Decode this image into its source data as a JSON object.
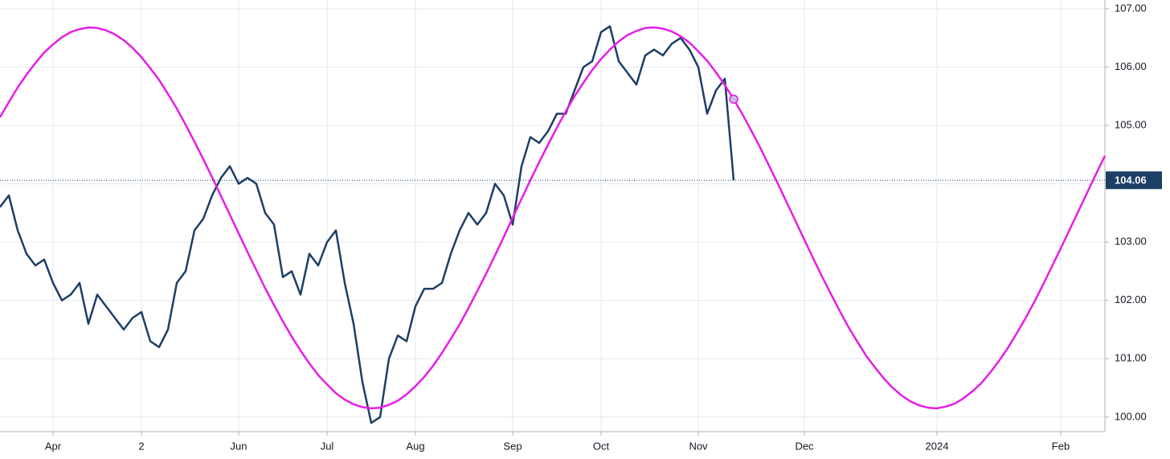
{
  "chart_data": {
    "type": "line",
    "categories": [
      null,
      null,
      null,
      null,
      null,
      null,
      "Apr",
      null,
      null,
      null,
      null,
      null,
      null,
      null,
      null,
      null,
      "2",
      null,
      null,
      null,
      null,
      null,
      null,
      null,
      null,
      null,
      null,
      "Jun",
      null,
      null,
      null,
      null,
      null,
      null,
      null,
      null,
      null,
      "Jul",
      null,
      null,
      null,
      null,
      null,
      null,
      null,
      null,
      null,
      "Aug",
      null,
      null,
      null,
      null,
      null,
      null,
      null,
      null,
      null,
      null,
      "Sep",
      null,
      null,
      null,
      null,
      null,
      null,
      null,
      null,
      null,
      "Oct",
      null,
      null,
      null,
      null,
      null,
      null,
      null,
      null,
      null,
      null,
      "Nov",
      null,
      null,
      null,
      null,
      null,
      null,
      null,
      null,
      null,
      null,
      null,
      "Dec",
      null,
      null,
      null,
      null,
      null,
      null,
      null,
      null,
      null,
      null,
      null,
      null,
      null,
      null,
      "2024",
      null,
      null,
      null,
      null,
      null,
      null,
      null,
      null,
      null,
      null,
      null,
      null,
      null,
      "Feb",
      null,
      null,
      null,
      null,
      null
    ],
    "series": [
      {
        "color": "#1d3f66",
        "values": [
          103.6,
          103.8,
          103.2,
          102.8,
          102.6,
          102.7,
          102.3,
          102.0,
          102.1,
          102.3,
          101.6,
          102.1,
          101.9,
          101.7,
          101.5,
          101.7,
          101.8,
          101.3,
          101.2,
          101.5,
          102.3,
          102.5,
          103.2,
          103.4,
          103.8,
          104.1,
          104.3,
          104.0,
          104.1,
          104.0,
          103.5,
          103.3,
          102.4,
          102.5,
          102.1,
          102.8,
          102.6,
          103.0,
          103.2,
          102.3,
          101.6,
          100.6,
          99.9,
          100.0,
          101.0,
          101.4,
          101.3,
          101.9,
          102.2,
          102.2,
          102.3,
          102.8,
          103.2,
          103.5,
          103.3,
          103.5,
          104.0,
          103.8,
          103.3,
          104.3,
          104.8,
          104.7,
          104.9,
          105.2,
          105.2,
          105.6,
          106.0,
          106.1,
          106.6,
          106.7,
          106.1,
          105.9,
          105.7,
          106.2,
          106.3,
          106.2,
          106.4,
          106.5,
          106.3,
          106.0,
          105.2,
          105.6,
          105.8,
          104.06,
          null,
          null,
          null,
          null,
          null,
          null,
          null,
          null,
          null,
          null,
          null,
          null,
          null,
          null,
          null,
          null,
          null,
          null,
          null,
          null,
          null,
          null,
          null,
          null,
          null,
          null,
          null,
          null,
          null,
          null,
          null,
          null,
          null,
          null,
          null,
          null,
          null,
          null,
          null,
          null,
          null,
          null
        ]
      },
      {
        "color": "#e61ee6",
        "values": [
          105.14,
          105.4,
          105.65,
          105.87,
          106.07,
          106.25,
          106.39,
          106.51,
          106.6,
          106.65,
          106.68,
          106.67,
          106.63,
          106.56,
          106.46,
          106.33,
          106.17,
          105.98,
          105.78,
          105.54,
          105.29,
          105.01,
          104.72,
          104.42,
          104.11,
          103.79,
          103.47,
          103.15,
          102.83,
          102.52,
          102.21,
          101.92,
          101.64,
          101.38,
          101.14,
          100.92,
          100.72,
          100.56,
          100.41,
          100.3,
          100.22,
          100.17,
          100.15,
          100.16,
          100.21,
          100.28,
          100.39,
          100.53,
          100.69,
          100.88,
          101.1,
          101.34,
          101.59,
          101.87,
          102.16,
          102.46,
          102.77,
          103.09,
          103.42,
          103.74,
          104.06,
          104.37,
          104.67,
          104.96,
          105.24,
          105.5,
          105.73,
          105.95,
          106.14,
          106.3,
          106.44,
          106.55,
          106.62,
          106.67,
          106.68,
          106.66,
          106.61,
          106.53,
          106.42,
          106.27,
          106.11,
          105.91,
          105.69,
          105.45,
          105.19,
          104.91,
          104.62,
          104.31,
          104.0,
          103.68,
          103.36,
          103.04,
          102.72,
          102.41,
          102.11,
          101.82,
          101.54,
          101.29,
          101.05,
          100.85,
          100.66,
          100.5,
          100.37,
          100.27,
          100.2,
          100.16,
          100.15,
          100.18,
          100.23,
          100.32,
          100.44,
          100.58,
          100.76,
          100.96,
          101.18,
          101.43,
          101.69,
          101.97,
          102.27,
          102.58,
          102.89,
          103.21,
          103.53,
          103.85,
          104.17,
          104.48
        ]
      }
    ],
    "ylim": [
      99.75,
      107.15
    ],
    "yticks": [
      {
        "value": 100,
        "label": "100.00"
      },
      {
        "value": 101,
        "label": "101.00"
      },
      {
        "value": 102,
        "label": "102.00"
      },
      {
        "value": 103,
        "label": "103.00"
      },
      {
        "value": 104,
        "label": "104.00"
      },
      {
        "value": 105,
        "label": "105.00"
      },
      {
        "value": 106,
        "label": "106.00"
      },
      {
        "value": 107,
        "label": "107.00"
      }
    ],
    "grid": true
  }
}
